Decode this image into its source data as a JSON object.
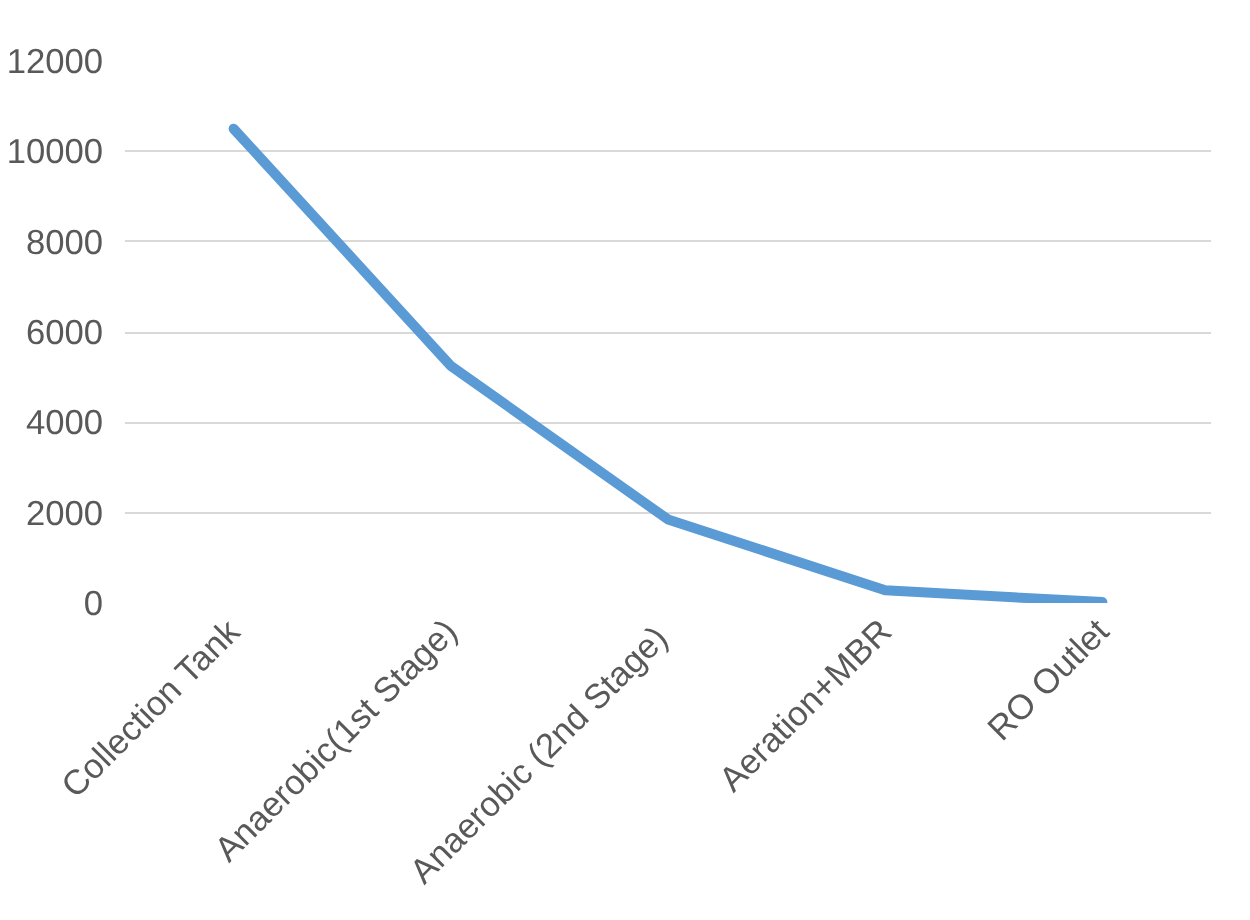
{
  "chart_data": {
    "type": "line",
    "categories": [
      "Collection Tank",
      "Anaerobic(1st Stage)",
      "Anaerobic (2nd  Stage)",
      "Aeration+MBR",
      "RO Outlet"
    ],
    "series": [
      {
        "color": "#5b9bd5",
        "values": [
          10500,
          5250,
          1850,
          280,
          20
        ]
      }
    ],
    "ylim": [
      0,
      12000
    ],
    "yticks": [
      0,
      2000,
      4000,
      6000,
      8000,
      10000,
      12000
    ],
    "grid": "y",
    "marker": "none",
    "line_style": "solid"
  }
}
